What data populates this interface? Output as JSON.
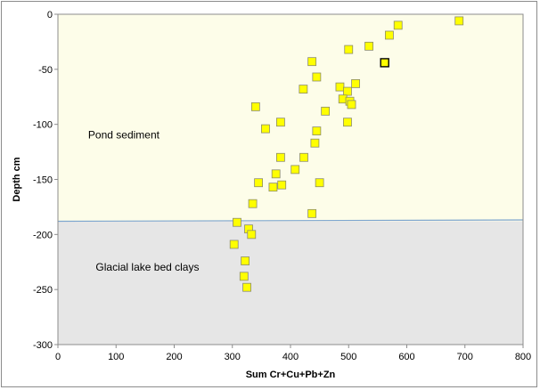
{
  "chart_data": {
    "type": "scatter",
    "title": "",
    "xlabel": "Sum Cr+Cu+Pb+Zn",
    "ylabel": "Depth cm",
    "xlim": [
      0,
      800
    ],
    "ylim": [
      -300,
      0
    ],
    "x_ticks": [
      "0",
      "100",
      "200",
      "300",
      "400",
      "500",
      "600",
      "700",
      "800"
    ],
    "y_ticks": [
      "0",
      "-50",
      "-100",
      "-150",
      "-200",
      "-250",
      "-300"
    ],
    "grid": false,
    "legend": "none",
    "boundary_depth": -188,
    "regions": [
      {
        "label": "Pond sediment",
        "color": "#fdfde9",
        "y_range": [
          -188,
          0
        ],
        "label_pos": [
          52,
          -113
        ]
      },
      {
        "label": "Glacial lake bed clays",
        "color": "#e6e6e6",
        "y_range": [
          -300,
          -188
        ],
        "label_pos": [
          65,
          -233
        ]
      }
    ],
    "marker_color": "#ffff00",
    "marker_edge": "#8c8c6b",
    "highlight_edge": "#000000",
    "boundary_color": "#7ea6cf",
    "points": [
      {
        "x": 690,
        "y": -6
      },
      {
        "x": 585,
        "y": -10
      },
      {
        "x": 570,
        "y": -19
      },
      {
        "x": 535,
        "y": -29
      },
      {
        "x": 500,
        "y": -32
      },
      {
        "x": 437,
        "y": -43
      },
      {
        "x": 562,
        "y": -44,
        "highlight": true
      },
      {
        "x": 445,
        "y": -57
      },
      {
        "x": 512,
        "y": -63
      },
      {
        "x": 485,
        "y": -66
      },
      {
        "x": 422,
        "y": -68
      },
      {
        "x": 498,
        "y": -70
      },
      {
        "x": 490,
        "y": -77
      },
      {
        "x": 502,
        "y": -79
      },
      {
        "x": 505,
        "y": -82
      },
      {
        "x": 340,
        "y": -84
      },
      {
        "x": 460,
        "y": -88
      },
      {
        "x": 383,
        "y": -98
      },
      {
        "x": 498,
        "y": -98
      },
      {
        "x": 357,
        "y": -104
      },
      {
        "x": 445,
        "y": -106
      },
      {
        "x": 442,
        "y": -117
      },
      {
        "x": 383,
        "y": -130
      },
      {
        "x": 423,
        "y": -130
      },
      {
        "x": 408,
        "y": -141
      },
      {
        "x": 375,
        "y": -145
      },
      {
        "x": 345,
        "y": -153
      },
      {
        "x": 450,
        "y": -153
      },
      {
        "x": 385,
        "y": -155
      },
      {
        "x": 370,
        "y": -157
      },
      {
        "x": 335,
        "y": -172
      },
      {
        "x": 437,
        "y": -181
      },
      {
        "x": 308,
        "y": -189
      },
      {
        "x": 328,
        "y": -195
      },
      {
        "x": 333,
        "y": -200
      },
      {
        "x": 303,
        "y": -209
      },
      {
        "x": 322,
        "y": -224
      },
      {
        "x": 320,
        "y": -238
      },
      {
        "x": 325,
        "y": -248
      }
    ]
  }
}
